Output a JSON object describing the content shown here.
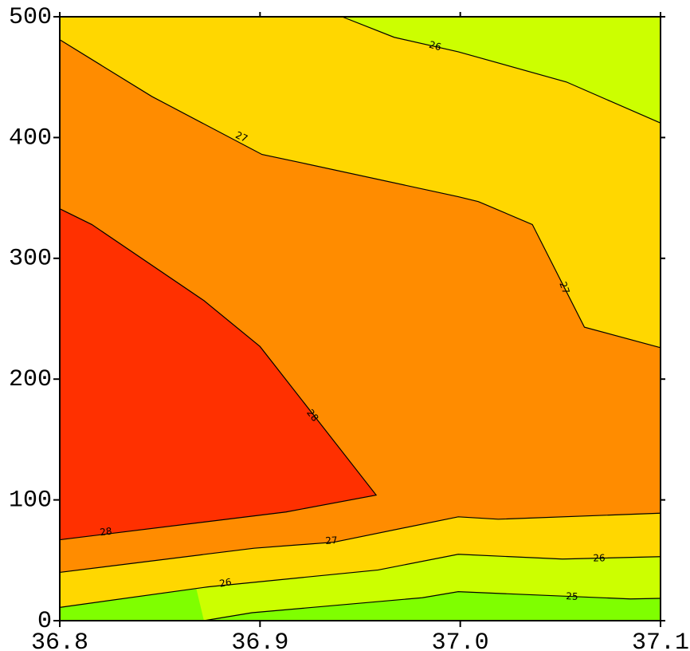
{
  "chart_data": {
    "type": "contour",
    "xlim": [
      36.8,
      37.1
    ],
    "ylim": [
      0,
      500
    ],
    "xticks": [
      36.8,
      36.9,
      {
        "value": 37.0,
        "label": "37.0"
      },
      37.1
    ],
    "yticks": [
      0,
      100,
      200,
      300,
      400,
      500
    ],
    "base_fill": "#7fff00",
    "contours": [
      {
        "level": 25,
        "fill": "#ccff00",
        "fill_side": "above",
        "x": [
          36.872,
          36.896,
          36.981,
          36.999,
          37.085,
          37.1
        ],
        "y": [
          0,
          6.6,
          19,
          24,
          18,
          18.5
        ]
      },
      {
        "level": 26,
        "fill": "#ffd700",
        "fill_side": "above",
        "x": [
          36.8,
          36.874,
          36.959,
          36.999,
          37.051,
          37.1
        ],
        "y": [
          11,
          28,
          42,
          55,
          51,
          53
        ]
      },
      {
        "level": 27,
        "fill": "#ff8c00",
        "fill_side": "above",
        "x": [
          36.8,
          36.897,
          36.937,
          36.999,
          37.019,
          37.1
        ],
        "y": [
          40,
          60,
          65,
          86,
          84,
          89
        ]
      },
      {
        "level": 28,
        "fill": "#ff3000",
        "fill_side": "inside",
        "x": [
          36.8,
          36.913,
          36.958,
          36.9,
          36.872,
          36.816,
          36.8
        ],
        "y": [
          67,
          90,
          104,
          227,
          265,
          328,
          341
        ]
      },
      {
        "level": 27,
        "fill": "#ffd700",
        "fill_side": "above",
        "x": [
          36.8,
          36.846,
          36.901,
          36.921,
          36.999,
          37.009,
          37.036,
          37.062,
          37.1
        ],
        "y": [
          481,
          434,
          386,
          379,
          351,
          347,
          328,
          243,
          226
        ]
      },
      {
        "level": 26,
        "fill": "#ccff00",
        "fill_side": "above",
        "x": [
          36.941,
          36.967,
          36.999,
          37.053,
          37.1
        ],
        "y": [
          500,
          483,
          471,
          446,
          412
        ]
      }
    ]
  }
}
